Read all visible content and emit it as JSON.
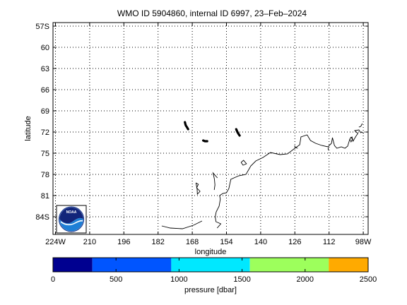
{
  "title": "WMO ID 5904860, internal ID 6997, 23–Feb–2024",
  "map": {
    "xlabel": "longitude",
    "ylabel": "latitude",
    "lon_ticks": [
      {
        "value": -224,
        "label": "224W"
      },
      {
        "value": -210,
        "label": "210"
      },
      {
        "value": -196,
        "label": "196"
      },
      {
        "value": -182,
        "label": "182"
      },
      {
        "value": -168,
        "label": "168"
      },
      {
        "value": -154,
        "label": "154"
      },
      {
        "value": -140,
        "label": "140"
      },
      {
        "value": -126,
        "label": "126"
      },
      {
        "value": -112,
        "label": "112"
      },
      {
        "value": -98,
        "label": "98W"
      }
    ],
    "lat_ticks": [
      {
        "value": -57,
        "label": "57S"
      },
      {
        "value": -60,
        "label": "60"
      },
      {
        "value": -63,
        "label": "63"
      },
      {
        "value": -66,
        "label": "66"
      },
      {
        "value": -69,
        "label": "69"
      },
      {
        "value": -72,
        "label": "72"
      },
      {
        "value": -75,
        "label": "75"
      },
      {
        "value": -78,
        "label": "78"
      },
      {
        "value": -81,
        "label": "81"
      },
      {
        "value": -84,
        "label": "84S"
      }
    ],
    "lon_range": [
      -225,
      -96
    ],
    "lat_range": [
      -86.5,
      -56.5
    ],
    "grid": true,
    "float_track_segments": [
      [
        [
          -171.0,
          -70.6
        ],
        [
          -170.8,
          -70.9
        ],
        [
          -170.6,
          -71.1
        ],
        [
          -170.2,
          -71.3
        ],
        [
          -169.7,
          -71.6
        ]
      ],
      [
        [
          -163.5,
          -73.2
        ],
        [
          -162.8,
          -73.3
        ],
        [
          -161.9,
          -73.3
        ]
      ],
      [
        [
          -150.0,
          -71.6
        ],
        [
          -149.5,
          -72.0
        ],
        [
          -149.0,
          -72.3
        ],
        [
          -148.6,
          -72.5
        ]
      ]
    ],
    "coastline": [
      [
        [
          -157.8,
          -85.6
        ],
        [
          -156.3,
          -85.0
        ],
        [
          -158.3,
          -84.7
        ],
        [
          -158.6,
          -84.0
        ],
        [
          -158.2,
          -83.3
        ],
        [
          -157.0,
          -82.5
        ],
        [
          -156.5,
          -81.5
        ],
        [
          -156.8,
          -81.0
        ],
        [
          -155.5,
          -80.7
        ],
        [
          -154.0,
          -80.6
        ],
        [
          -153.0,
          -80.0
        ],
        [
          -152.2,
          -78.7
        ],
        [
          -149.0,
          -78.2
        ],
        [
          -146.0,
          -78.0
        ],
        [
          -144.0,
          -76.8
        ],
        [
          -142.0,
          -76.1
        ],
        [
          -139.0,
          -75.6
        ],
        [
          -136.0,
          -74.9
        ],
        [
          -132.0,
          -75.2
        ],
        [
          -129.0,
          -75.1
        ],
        [
          -126.0,
          -74.3
        ],
        [
          -124.0,
          -73.8
        ],
        [
          -123.5,
          -72.7
        ],
        [
          -121.0,
          -72.4
        ],
        [
          -119.6,
          -73.2
        ],
        [
          -117.5,
          -73.6
        ],
        [
          -115.0,
          -73.9
        ],
        [
          -112.5,
          -74.1
        ],
        [
          -111.0,
          -73.6
        ],
        [
          -110.6,
          -72.8
        ],
        [
          -109.8,
          -73.9
        ],
        [
          -108.8,
          -74.3
        ],
        [
          -107.0,
          -74.1
        ],
        [
          -105.5,
          -74.3
        ],
        [
          -104.4,
          -74.0
        ],
        [
          -103.4,
          -72.9
        ],
        [
          -102.6,
          -72.7
        ],
        [
          -102.2,
          -73.3
        ],
        [
          -101.0,
          -72.6
        ],
        [
          -100.2,
          -72.2
        ],
        [
          -101.5,
          -71.8
        ],
        [
          -99.8,
          -71.7
        ],
        [
          -99.0,
          -72.1
        ],
        [
          -98.6,
          -72.0
        ],
        [
          -97.8,
          -72.2
        ]
      ],
      [
        [
          -164.0,
          -84.6
        ],
        [
          -167.5,
          -85.2
        ],
        [
          -172.0,
          -85.7
        ],
        [
          -177.0,
          -85.6
        ],
        [
          -180.5,
          -85.3
        ]
      ],
      [
        [
          -166.5,
          -79.2
        ],
        [
          -165.5,
          -79.4
        ],
        [
          -166.2,
          -79.9
        ],
        [
          -164.8,
          -80.4
        ],
        [
          -165.9,
          -80.8
        ],
        [
          -166.0,
          -80.1
        ],
        [
          -166.5,
          -79.2
        ]
      ],
      [
        [
          -157.7,
          -78.5
        ],
        [
          -159.5,
          -77.8
        ],
        [
          -158.9,
          -78.7
        ],
        [
          -158.7,
          -79.5
        ],
        [
          -159.0,
          -80.2
        ]
      ],
      [
        [
          -148.0,
          -76.3
        ],
        [
          -147.2,
          -76.7
        ],
        [
          -145.8,
          -76.5
        ],
        [
          -147.0,
          -76.0
        ],
        [
          -148.0,
          -76.3
        ]
      ],
      [
        [
          -126.1,
          -73.9
        ],
        [
          -125.8,
          -74.2
        ],
        [
          -124.8,
          -74.3
        ]
      ],
      [
        [
          -112.2,
          -74.2
        ],
        [
          -112.4,
          -74.4
        ],
        [
          -112.1,
          -74.6
        ]
      ],
      [
        [
          -103.5,
          -73.0
        ],
        [
          -103.0,
          -73.4
        ],
        [
          -102.4,
          -73.0
        ],
        [
          -103.2,
          -72.7
        ]
      ],
      [
        [
          -99.8,
          -71.3
        ],
        [
          -99.0,
          -71.2
        ],
        [
          -98.4,
          -70.8
        ]
      ]
    ],
    "legend_emblem_text": "NOAA"
  },
  "colorbar": {
    "label": "pressure [dbar]",
    "range": [
      0,
      2500
    ],
    "ticks": [
      {
        "value": 0,
        "label": "0"
      },
      {
        "value": 500,
        "label": "500"
      },
      {
        "value": 1000,
        "label": "1000"
      },
      {
        "value": 1500,
        "label": "1500"
      },
      {
        "value": 2000,
        "label": "2000"
      },
      {
        "value": 2500,
        "label": "2500"
      }
    ],
    "bands": [
      {
        "from": 0,
        "to": 312,
        "color": "#000090"
      },
      {
        "from": 312,
        "to": 938,
        "color": "#0055ff"
      },
      {
        "from": 938,
        "to": 1562,
        "color": "#00e8ff"
      },
      {
        "from": 1562,
        "to": 2188,
        "color": "#9dff5c"
      },
      {
        "from": 2188,
        "to": 2500,
        "color": "#ffaa00"
      }
    ]
  }
}
